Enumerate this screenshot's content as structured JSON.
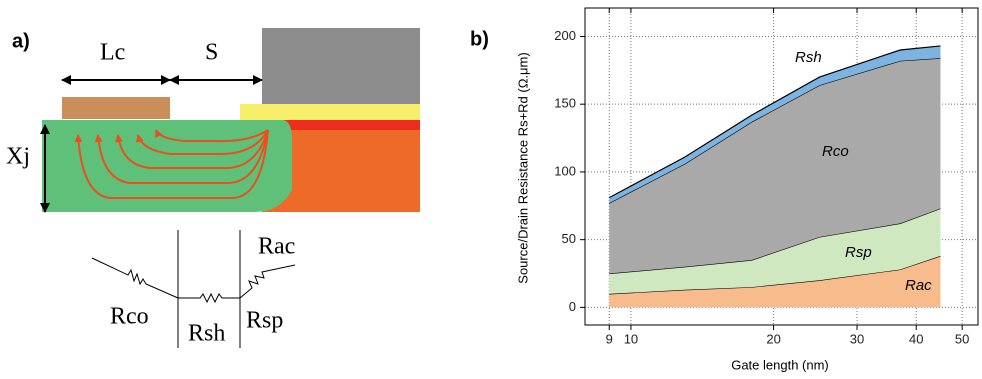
{
  "panel_a": {
    "label": "a)",
    "lc": "Lc",
    "s": "S",
    "xj": "Xj",
    "rac": "Rac",
    "rco": "Rco",
    "rsh": "Rsh",
    "rsp": "Rsp"
  },
  "chart_data": {
    "type": "area",
    "stacked": true,
    "panel_label": "b)",
    "y_label": "Source/Drain Resistance Rs+Rd (Ω.μm)",
    "x_label": "Gate length (nm)",
    "x": [
      9,
      13,
      18,
      25,
      37,
      45
    ],
    "series": [
      {
        "name": "Rac",
        "color": "#f7bb8c",
        "values": [
          10,
          13,
          15,
          20,
          28,
          38
        ]
      },
      {
        "name": "Rsp",
        "color": "#cfe8c0",
        "values": [
          15,
          17,
          20,
          32,
          34,
          35
        ]
      },
      {
        "name": "Rco",
        "color": "#a9a9a9",
        "values": [
          52,
          76,
          102,
          112,
          120,
          111
        ]
      },
      {
        "name": "Rsh",
        "color": "#7db3e0",
        "values": [
          4,
          5,
          5,
          6,
          8,
          9
        ]
      }
    ],
    "xlim": [
      8,
      54
    ],
    "xticks": [
      9,
      10,
      20,
      30,
      40,
      50
    ],
    "xscale": "log",
    "ylim": [
      -13,
      221
    ],
    "yticks": [
      0,
      50,
      100,
      150,
      200
    ],
    "grid": true
  }
}
